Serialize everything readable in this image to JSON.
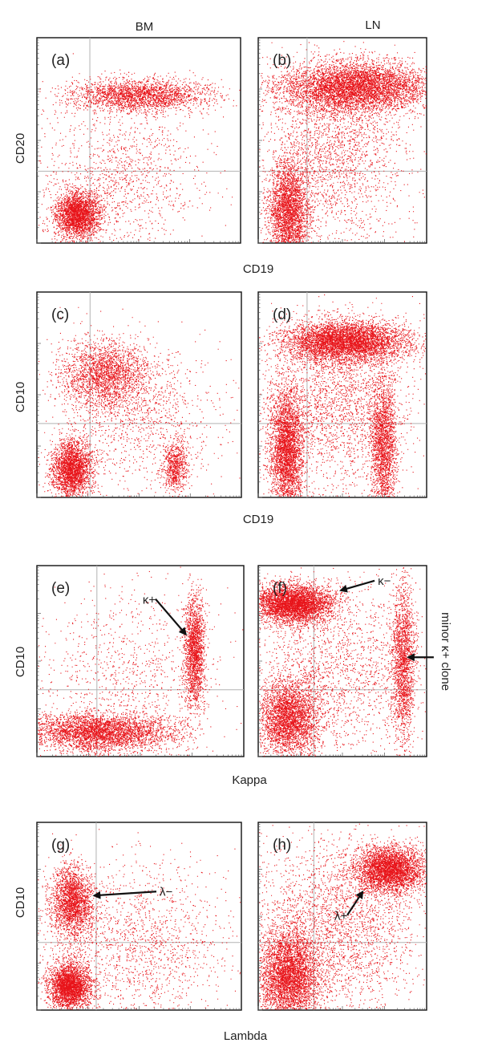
{
  "figure": {
    "column_headers": [
      "BM",
      "LN"
    ]
  },
  "colors": {
    "events": "#e8141a",
    "quadrant_lines": "#b3b3b3",
    "frame": "#111111",
    "arrow": "#111111"
  },
  "chart_data": [
    {
      "type": "scatter",
      "panel": "(a)",
      "column": "BM",
      "xlabel": "CD19",
      "ylabel": "CD20",
      "xlim": [
        0,
        1
      ],
      "ylim": [
        0,
        1
      ],
      "quadrant_x": 0.26,
      "quadrant_y": 0.35,
      "clusters": [
        {
          "cx": 0.2,
          "cy": 0.14,
          "sx": 0.055,
          "sy": 0.055,
          "n": 2600
        },
        {
          "cx": 0.5,
          "cy": 0.72,
          "sx": 0.17,
          "sy": 0.04,
          "n": 2400
        },
        {
          "cx": 0.4,
          "cy": 0.32,
          "sx": 0.22,
          "sy": 0.18,
          "n": 1200
        }
      ],
      "annotations": []
    },
    {
      "type": "scatter",
      "panel": "(b)",
      "column": "LN",
      "xlabel": "CD19",
      "ylabel": "CD20",
      "xlim": [
        0,
        1
      ],
      "ylim": [
        0,
        1
      ],
      "quadrant_x": 0.29,
      "quadrant_y": 0.35,
      "clusters": [
        {
          "cx": 0.18,
          "cy": 0.15,
          "sx": 0.06,
          "sy": 0.13,
          "n": 3000
        },
        {
          "cx": 0.58,
          "cy": 0.76,
          "sx": 0.22,
          "sy": 0.06,
          "n": 5500
        },
        {
          "cx": 0.45,
          "cy": 0.45,
          "sx": 0.22,
          "sy": 0.22,
          "n": 2200
        }
      ],
      "annotations": []
    },
    {
      "type": "scatter",
      "panel": "(c)",
      "column": "BM",
      "xlabel": "CD19",
      "ylabel": "CD10",
      "xlim": [
        0,
        1
      ],
      "ylim": [
        0,
        1
      ],
      "quadrant_x": 0.26,
      "quadrant_y": 0.36,
      "clusters": [
        {
          "cx": 0.17,
          "cy": 0.14,
          "sx": 0.05,
          "sy": 0.07,
          "n": 2600
        },
        {
          "cx": 0.33,
          "cy": 0.6,
          "sx": 0.11,
          "sy": 0.08,
          "n": 2200
        },
        {
          "cx": 0.68,
          "cy": 0.15,
          "sx": 0.03,
          "sy": 0.06,
          "n": 700
        },
        {
          "cx": 0.5,
          "cy": 0.4,
          "sx": 0.2,
          "sy": 0.18,
          "n": 1200
        }
      ],
      "annotations": []
    },
    {
      "type": "scatter",
      "panel": "(d)",
      "column": "LN",
      "xlabel": "CD19",
      "ylabel": "CD10",
      "xlim": [
        0,
        1
      ],
      "ylim": [
        0,
        1
      ],
      "quadrant_x": 0.29,
      "quadrant_y": 0.36,
      "clusters": [
        {
          "cx": 0.17,
          "cy": 0.23,
          "sx": 0.05,
          "sy": 0.15,
          "n": 3400
        },
        {
          "cx": 0.52,
          "cy": 0.76,
          "sx": 0.18,
          "sy": 0.05,
          "n": 5000
        },
        {
          "cx": 0.74,
          "cy": 0.25,
          "sx": 0.04,
          "sy": 0.18,
          "n": 2200
        },
        {
          "cx": 0.45,
          "cy": 0.45,
          "sx": 0.22,
          "sy": 0.2,
          "n": 2200
        }
      ],
      "annotations": []
    },
    {
      "type": "scatter",
      "panel": "(e)",
      "column": "BM",
      "xlabel": "Kappa",
      "ylabel": "CD10",
      "xlim": [
        0,
        1
      ],
      "ylim": [
        0,
        1
      ],
      "quadrant_x": 0.29,
      "quadrant_y": 0.35,
      "clusters": [
        {
          "cx": 0.3,
          "cy": 0.13,
          "sx": 0.18,
          "sy": 0.05,
          "n": 3800
        },
        {
          "cx": 0.76,
          "cy": 0.55,
          "sx": 0.025,
          "sy": 0.15,
          "n": 1800
        },
        {
          "cx": 0.45,
          "cy": 0.45,
          "sx": 0.22,
          "sy": 0.22,
          "n": 900
        }
      ],
      "annotations": [
        {
          "text": "κ+",
          "tx": 0.55,
          "ty": 0.8,
          "ax": 0.72,
          "ay": 0.64
        }
      ]
    },
    {
      "type": "scatter",
      "panel": "(f)",
      "column": "LN",
      "xlabel": "Kappa",
      "ylabel": "CD10",
      "xlim": [
        0,
        1
      ],
      "ylim": [
        0,
        1
      ],
      "quadrant_x": 0.33,
      "quadrant_y": 0.35,
      "clusters": [
        {
          "cx": 0.21,
          "cy": 0.8,
          "sx": 0.12,
          "sy": 0.05,
          "n": 4200
        },
        {
          "cx": 0.18,
          "cy": 0.2,
          "sx": 0.09,
          "sy": 0.1,
          "n": 3200
        },
        {
          "cx": 0.86,
          "cy": 0.5,
          "sx": 0.035,
          "sy": 0.2,
          "n": 1900
        },
        {
          "cx": 0.45,
          "cy": 0.45,
          "sx": 0.25,
          "sy": 0.22,
          "n": 1800
        }
      ],
      "annotations": [
        {
          "text": "κ−",
          "tx": 0.71,
          "ty": 0.9,
          "ax": 0.49,
          "ay": 0.87
        },
        {
          "text": "minor κ+ clone",
          "tx": 1.09,
          "ty": 0.55,
          "ax": 0.89,
          "ay": 0.52,
          "rotate": 90
        }
      ]
    },
    {
      "type": "scatter",
      "panel": "(g)",
      "column": "BM",
      "xlabel": "Lambda",
      "ylabel": "CD10",
      "xlim": [
        0,
        1
      ],
      "ylim": [
        0,
        1
      ],
      "quadrant_x": 0.29,
      "quadrant_y": 0.36,
      "clusters": [
        {
          "cx": 0.17,
          "cy": 0.58,
          "sx": 0.05,
          "sy": 0.09,
          "n": 2200
        },
        {
          "cx": 0.16,
          "cy": 0.13,
          "sx": 0.05,
          "sy": 0.06,
          "n": 2800
        },
        {
          "cx": 0.45,
          "cy": 0.35,
          "sx": 0.25,
          "sy": 0.22,
          "n": 1800
        }
      ],
      "annotations": [
        {
          "text": "λ−",
          "tx": 0.6,
          "ty": 0.61,
          "ax": 0.28,
          "ay": 0.61
        }
      ]
    },
    {
      "type": "scatter",
      "panel": "(h)",
      "column": "LN",
      "xlabel": "Lambda",
      "ylabel": "CD10",
      "xlim": [
        0,
        1
      ],
      "ylim": [
        0,
        1
      ],
      "quadrant_x": 0.33,
      "quadrant_y": 0.36,
      "clusters": [
        {
          "cx": 0.18,
          "cy": 0.18,
          "sx": 0.09,
          "sy": 0.13,
          "n": 4200
        },
        {
          "cx": 0.78,
          "cy": 0.75,
          "sx": 0.1,
          "sy": 0.06,
          "n": 3600
        },
        {
          "cx": 0.45,
          "cy": 0.45,
          "sx": 0.25,
          "sy": 0.24,
          "n": 2800
        }
      ],
      "annotations": [
        {
          "text": "λ+",
          "tx": 0.5,
          "ty": 0.48,
          "ax": 0.62,
          "ay": 0.63
        }
      ]
    }
  ]
}
